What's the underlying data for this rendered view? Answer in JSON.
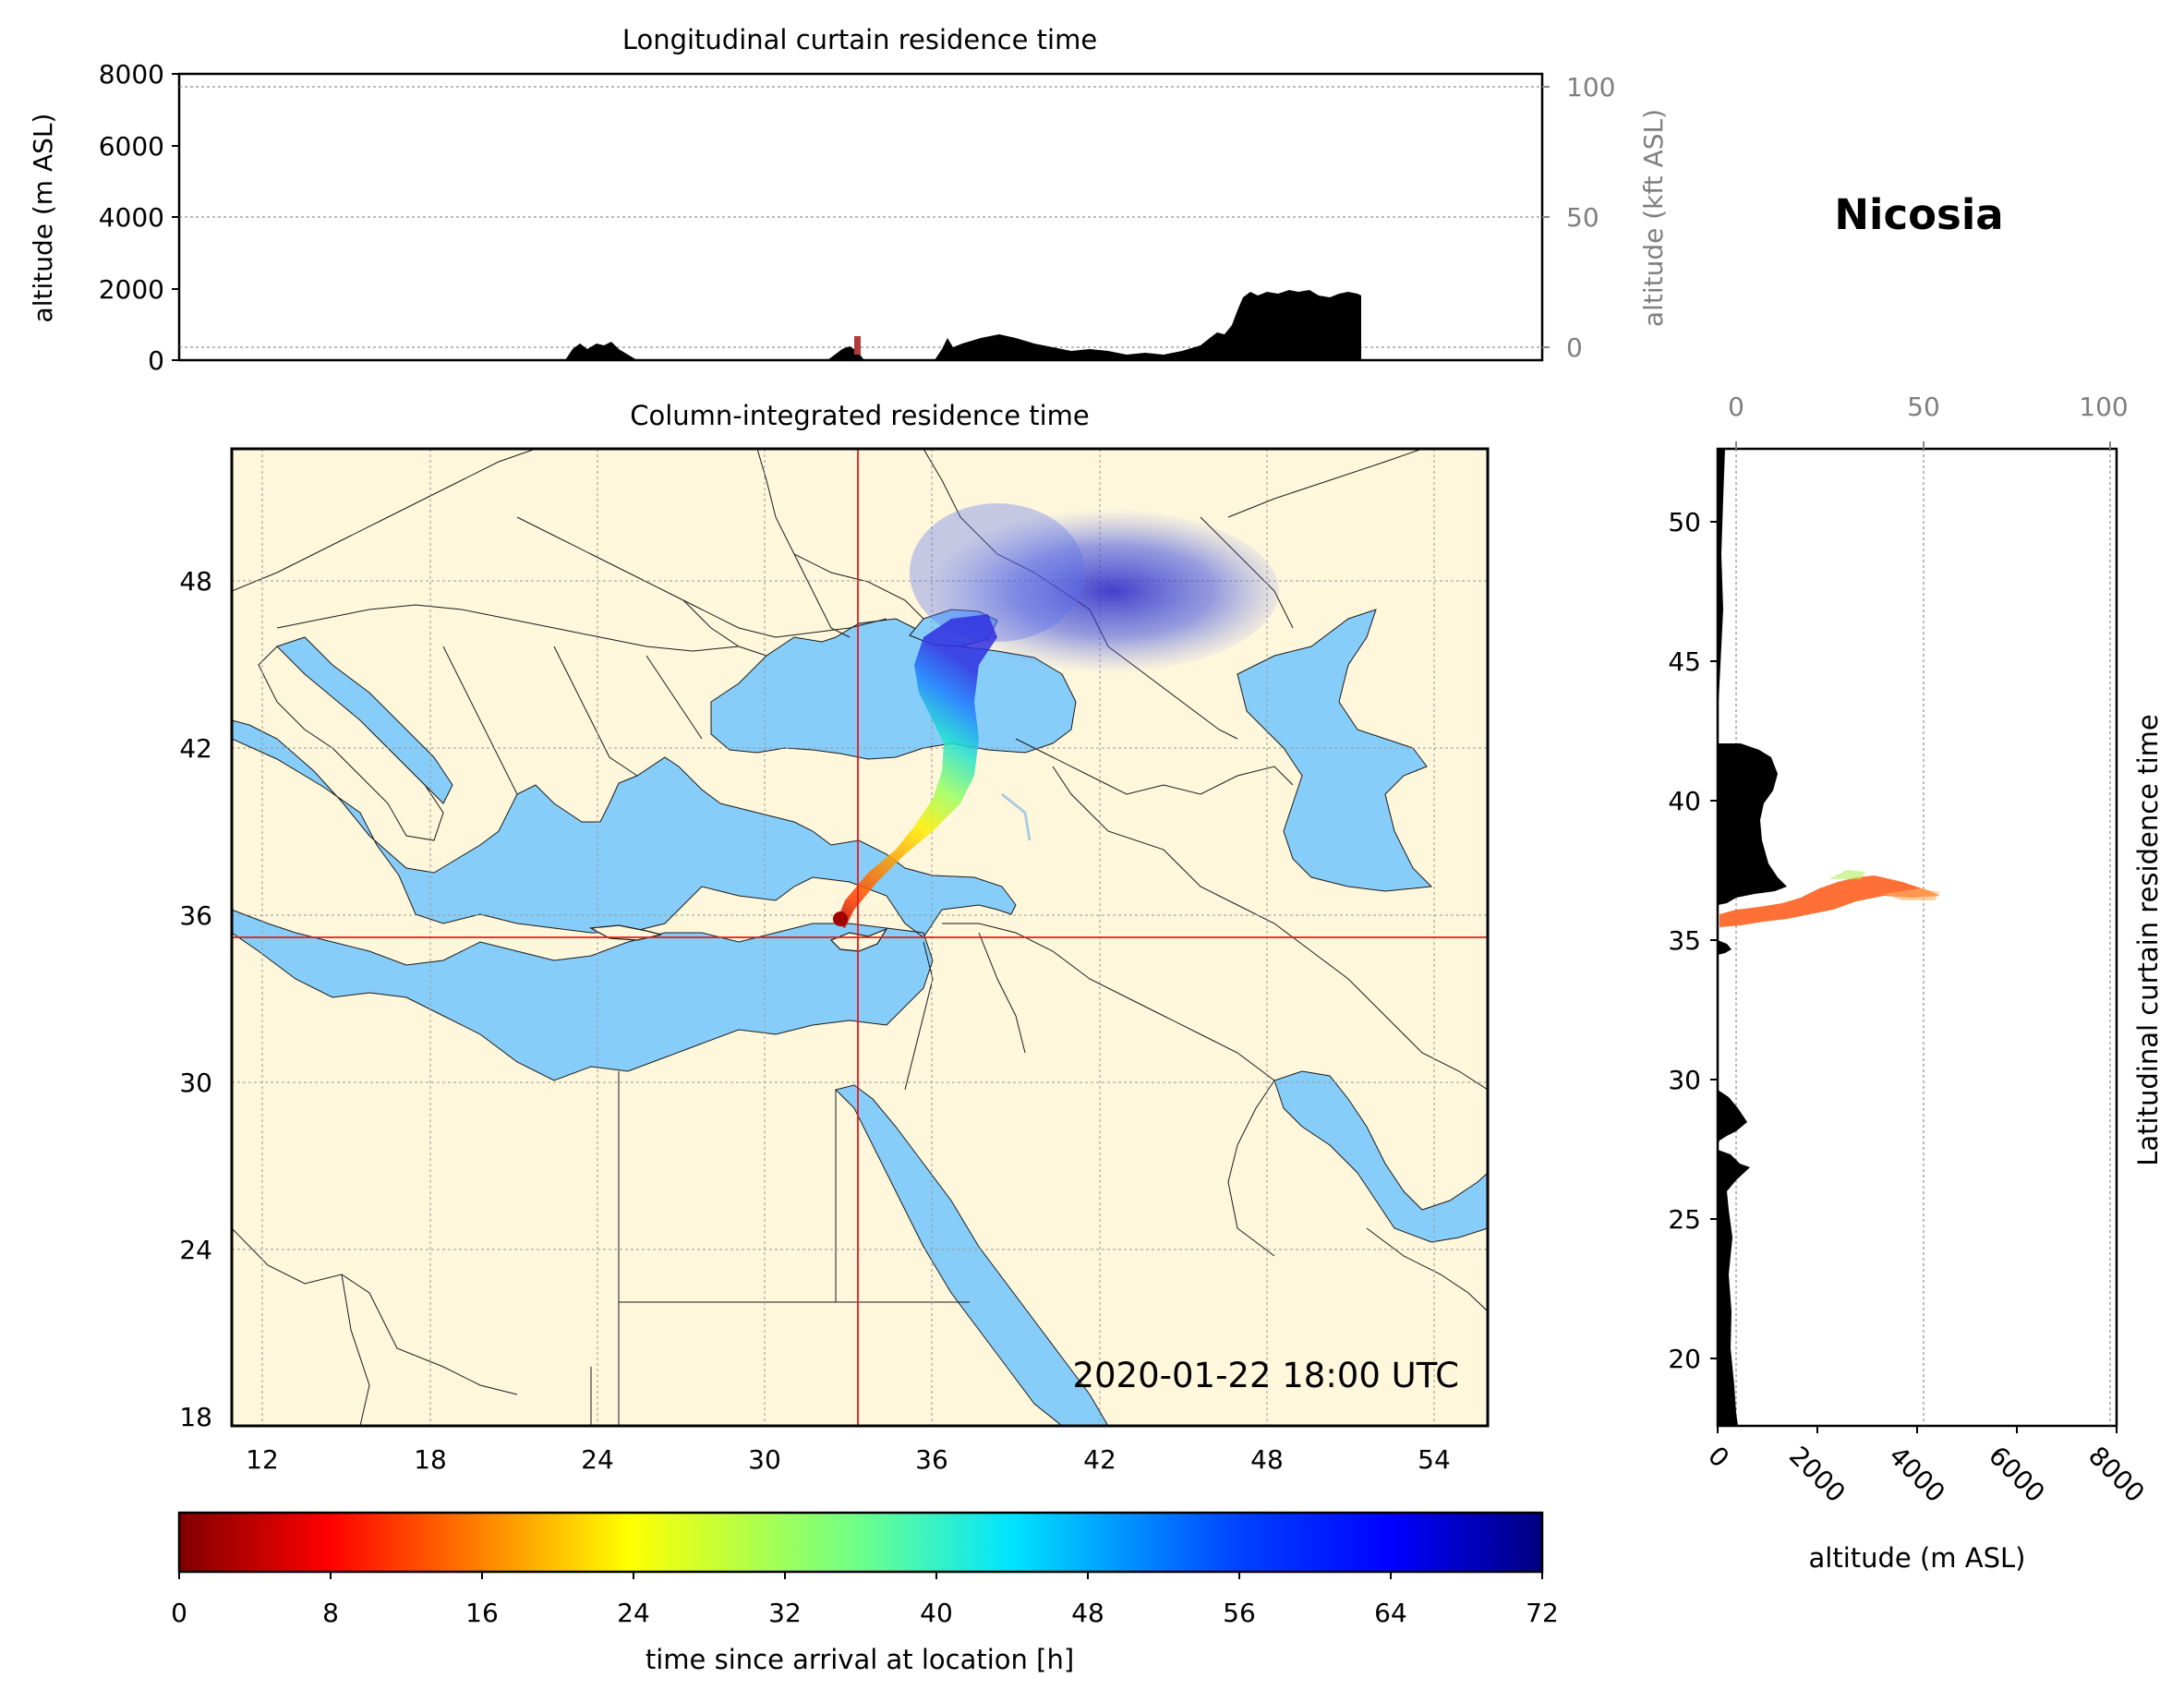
{
  "location_title": "Nicosia",
  "timestamp": "2020-01-22 18:00 UTC",
  "colors": {
    "land": "#fff7dc",
    "sea": "#87cdf9",
    "border": "#1a1a1a",
    "crosshair": "#e41a1c",
    "terrain": "#000000"
  },
  "top_panel": {
    "title": "Longitudinal curtain residence time",
    "ylabel_left": "altitude (m ASL)",
    "ylabel_right": "altitude (kft ASL)",
    "yticks_left": [
      "0",
      "2000",
      "4000",
      "6000",
      "8000"
    ],
    "yticks_right": [
      "0",
      "50",
      "100"
    ],
    "ylim_m": [
      0,
      8000
    ]
  },
  "map_panel": {
    "title": "Column-integrated residence time",
    "xticks": [
      "12",
      "18",
      "24",
      "30",
      "36",
      "42",
      "48",
      "54"
    ],
    "yticks": [
      "18",
      "24",
      "30",
      "36",
      "42",
      "48"
    ],
    "lon_range": [
      10.9,
      55.9
    ],
    "lat_range": [
      18,
      53.8
    ],
    "crosshair": {
      "lon": 33.4,
      "lat": 35.2
    }
  },
  "right_panel": {
    "ylabel": "Latitudinal curtain residence time",
    "xlabel": "altitude (m ASL)",
    "xticks_bottom": [
      "0",
      "2000",
      "4000",
      "6000",
      "8000"
    ],
    "xticks_top": [
      "0",
      "50",
      "100"
    ],
    "yticks": [
      "20",
      "25",
      "30",
      "35",
      "40",
      "45",
      "50"
    ],
    "xlim_m": [
      0,
      8000
    ],
    "lat_range": [
      17.8,
      52.8
    ]
  },
  "colorbar": {
    "label": "time since arrival at location [h]",
    "ticks": [
      "0",
      "8",
      "16",
      "24",
      "32",
      "40",
      "48",
      "56",
      "64",
      "72"
    ],
    "range": [
      0,
      72
    ],
    "colormap": "jet_r"
  }
}
